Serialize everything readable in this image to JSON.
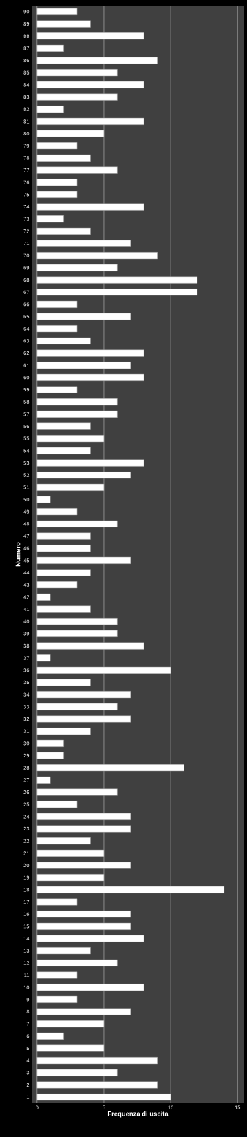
{
  "chart_data": {
    "type": "bar",
    "orientation": "horizontal",
    "xlabel": "Frequenza di uscita",
    "ylabel": "Numero",
    "categories": [
      "90",
      "89",
      "88",
      "87",
      "86",
      "85",
      "84",
      "83",
      "82",
      "81",
      "80",
      "79",
      "78",
      "77",
      "76",
      "75",
      "74",
      "73",
      "72",
      "71",
      "70",
      "69",
      "68",
      "67",
      "66",
      "65",
      "64",
      "63",
      "62",
      "61",
      "60",
      "59",
      "58",
      "57",
      "56",
      "55",
      "54",
      "53",
      "52",
      "51",
      "50",
      "49",
      "48",
      "47",
      "46",
      "45",
      "44",
      "43",
      "42",
      "41",
      "40",
      "39",
      "38",
      "37",
      "36",
      "35",
      "34",
      "33",
      "32",
      "31",
      "30",
      "29",
      "28",
      "27",
      "26",
      "25",
      "24",
      "23",
      "22",
      "21",
      "20",
      "19",
      "18",
      "17",
      "16",
      "15",
      "14",
      "13",
      "12",
      "11",
      "10",
      "9",
      "8",
      "7",
      "6",
      "5",
      "4",
      "3",
      "2",
      "1"
    ],
    "values": [
      3,
      4,
      8,
      2,
      9,
      6,
      8,
      6,
      2,
      8,
      5,
      3,
      4,
      6,
      3,
      3,
      8,
      2,
      4,
      7,
      9,
      6,
      12,
      12,
      3,
      7,
      3,
      4,
      8,
      7,
      8,
      3,
      6,
      6,
      4,
      5,
      4,
      8,
      7,
      5,
      1,
      3,
      6,
      4,
      4,
      7,
      4,
      3,
      1,
      4,
      6,
      6,
      8,
      1,
      10,
      4,
      7,
      6,
      7,
      4,
      2,
      2,
      11,
      1,
      6,
      3,
      7,
      7,
      4,
      5,
      7,
      5,
      14,
      3,
      7,
      7,
      8,
      4,
      6,
      3,
      8,
      3,
      7,
      5,
      2,
      5,
      9,
      6,
      9,
      10
    ],
    "color": "#ffffff",
    "xlim": [
      -0.4,
      15.5
    ],
    "xticks": [
      0,
      5,
      10,
      15
    ],
    "grid": "x"
  }
}
